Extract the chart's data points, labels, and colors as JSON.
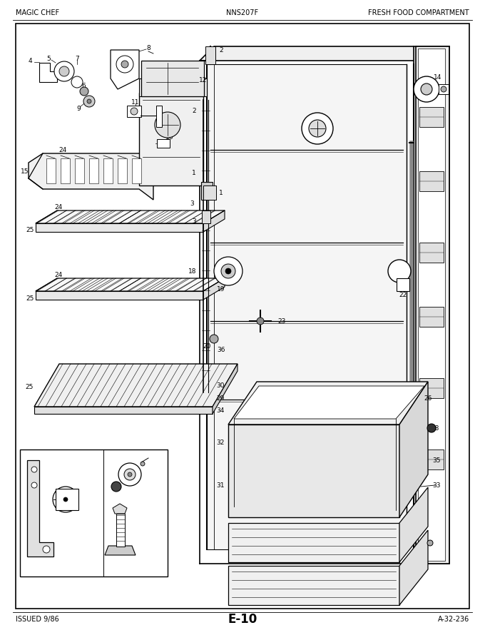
{
  "title_left": "MAGIC CHEF",
  "title_center": "NNS207F",
  "title_right": "FRESH FOOD COMPARTMENT",
  "bottom_left": "ISSUED 9/86",
  "bottom_center": "E-10",
  "bottom_right": "A-32-236",
  "bg_color": "#ffffff"
}
